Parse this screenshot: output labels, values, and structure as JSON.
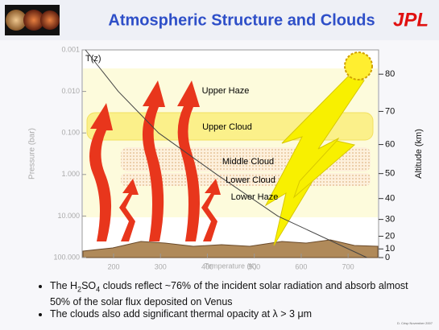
{
  "header": {
    "title": "Atmospheric Structure and Clouds",
    "logo": "JPL"
  },
  "chart_data": {
    "type": "line",
    "ylabel": "Pressure (bar)",
    "xlabel": "Temperature (K)",
    "y2label": "Altitude (km)",
    "ylog": true,
    "ylim": [
      0.001,
      100
    ],
    "yticks": [
      {
        "value": 0.001,
        "label": "0.001"
      },
      {
        "value": 0.01,
        "label": "0.010"
      },
      {
        "value": 0.1,
        "label": "0.100"
      },
      {
        "value": 1,
        "label": "1.000"
      },
      {
        "value": 10,
        "label": "10.000"
      },
      {
        "value": 100,
        "label": "100.000"
      }
    ],
    "xlim": [
      133,
      765
    ],
    "xticks": [
      200,
      300,
      400,
      500,
      600,
      700
    ],
    "y2lim": [
      0,
      86
    ],
    "y2ticks": [
      0,
      10,
      20,
      30,
      40,
      50,
      60,
      70,
      80
    ],
    "series": [
      {
        "name": "T(z)",
        "color": "#444444",
        "x": [
          140,
          210,
          296,
          420,
          550,
          740
        ],
        "values": [
          0.001,
          0.01,
          0.1,
          1,
          10,
          100
        ]
      }
    ],
    "layers": [
      "Upper Haze",
      "Upper Cloud",
      "Middle Cloud",
      "Lower Cloud",
      "Lower Haze"
    ]
  },
  "bullets": [
    [
      "The H",
      "2",
      "SO",
      "4",
      " clouds reflect ~76% of the incident solar radiation and absorb almost 50% of the solar flux deposited on Venus"
    ],
    [
      "The clouds also add significant thermal opacity at λ > 3 μm"
    ]
  ],
  "footer": "D. Crisp November 2007"
}
